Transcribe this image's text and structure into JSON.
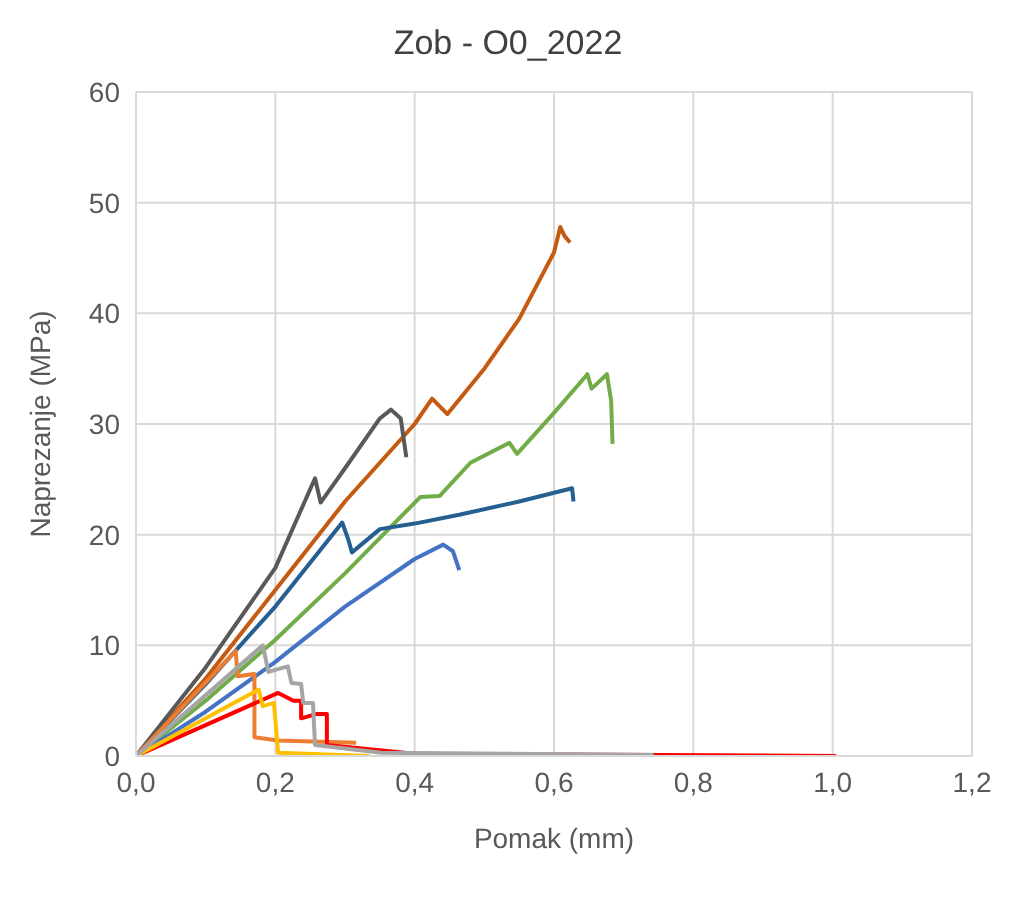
{
  "chart_data": {
    "type": "line",
    "title": "Zob - O0_2022",
    "xlabel": "Pomak (mm)",
    "ylabel": "Naprezanje  (MPa)",
    "xlim": [
      0,
      1.2
    ],
    "xticks": [
      {
        "value": 0,
        "label": "0,0"
      },
      {
        "value": 0.2,
        "label": "0,2"
      },
      {
        "value": 0.4,
        "label": "0,4"
      },
      {
        "value": 0.6,
        "label": "0,6"
      },
      {
        "value": 0.8,
        "label": "0,8"
      },
      {
        "value": 1,
        "label": "1,0"
      },
      {
        "value": 1.2,
        "label": "1,2"
      }
    ],
    "ylim": [
      0,
      60
    ],
    "yticks": [
      0,
      10,
      20,
      30,
      40,
      50,
      60
    ],
    "grid": true,
    "legend": false,
    "marker": "none",
    "line_style": "solid",
    "series": [
      {
        "color": "#c55a11",
        "x": [
          0,
          0.1,
          0.2,
          0.3,
          0.4,
          0.425,
          0.447,
          0.5,
          0.55,
          0.6,
          0.609,
          0.615,
          0.623
        ],
        "values": [
          0,
          7,
          15,
          23,
          30,
          32.3,
          30.9,
          35,
          39.5,
          45.5,
          47.8,
          47,
          46.4
        ]
      },
      {
        "color": "#70ad47",
        "x": [
          0,
          0.1,
          0.2,
          0.3,
          0.408,
          0.436,
          0.48,
          0.536,
          0.547,
          0.6,
          0.648,
          0.654,
          0.676,
          0.682,
          0.684
        ],
        "values": [
          0,
          5,
          10.5,
          16.5,
          23.4,
          23.5,
          26.5,
          28.3,
          27.3,
          31,
          34.5,
          33.2,
          34.5,
          32.1,
          28.2
        ]
      },
      {
        "color": "#255e91",
        "x": [
          0,
          0.1,
          0.2,
          0.296,
          0.305,
          0.31,
          0.35,
          0.4,
          0.464,
          0.55,
          0.626,
          0.628
        ],
        "values": [
          0,
          6.5,
          13.5,
          21.1,
          19.5,
          18.4,
          20.5,
          21,
          21.8,
          23,
          24.2,
          23
        ]
      },
      {
        "color": "#4472c4",
        "x": [
          0,
          0.1,
          0.2,
          0.3,
          0.4,
          0.441,
          0.455,
          0.464
        ],
        "values": [
          0,
          4,
          8.5,
          13.5,
          17.8,
          19.1,
          18.5,
          16.8
        ]
      },
      {
        "color": "#595959",
        "x": [
          0,
          0.1,
          0.2,
          0.257,
          0.265,
          0.3,
          0.35,
          0.366,
          0.38,
          0.388
        ],
        "values": [
          0,
          8,
          17,
          25.1,
          22.9,
          26,
          30.5,
          31.3,
          30.5,
          27
        ]
      },
      {
        "color": "#ed7d31",
        "x": [
          0,
          0.143,
          0.146,
          0.17,
          0.17,
          0.204,
          0.316
        ],
        "values": [
          0,
          9.5,
          7.2,
          7.4,
          1.7,
          1.4,
          1.2
        ]
      },
      {
        "color": "#ff0000",
        "x": [
          0,
          0.204,
          0.226,
          0.237,
          0.237,
          0.26,
          0.274,
          0.274,
          0.4,
          1.005
        ],
        "values": [
          0,
          5.7,
          5,
          5,
          3.4,
          3.8,
          3.8,
          1,
          0.2,
          0
        ]
      },
      {
        "color": "#ffc000",
        "x": [
          0,
          0.176,
          0.182,
          0.198,
          0.204,
          0.335
        ],
        "values": [
          0,
          6,
          4.5,
          4.8,
          0.3,
          0
        ]
      },
      {
        "color": "#a5a5a5",
        "x": [
          0,
          0.182,
          0.19,
          0.218,
          0.223,
          0.237,
          0.24,
          0.254,
          0.257,
          0.352,
          0.743
        ],
        "values": [
          0,
          10,
          7.6,
          8.1,
          6.6,
          6.5,
          4.8,
          4.8,
          1,
          0.3,
          0.1
        ]
      }
    ]
  }
}
